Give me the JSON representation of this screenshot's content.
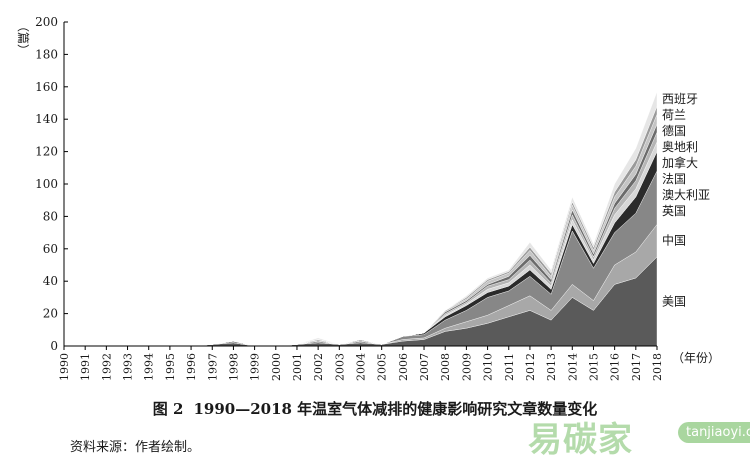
{
  "chart_data": {
    "type": "area",
    "stacked": true,
    "y_unit": "（篇）",
    "x_unit": "（年份）",
    "ylim": [
      0,
      200
    ],
    "yticks": [
      0,
      20,
      40,
      60,
      80,
      100,
      120,
      140,
      160,
      180,
      200
    ],
    "grid": false,
    "x": [
      "1990",
      "1991",
      "1992",
      "1993",
      "1994",
      "1995",
      "1996",
      "1997",
      "1998",
      "1999",
      "2000",
      "2001",
      "2002",
      "2003",
      "2004",
      "2005",
      "2006",
      "2007",
      "2008",
      "2009",
      "2010",
      "2011",
      "2012",
      "2013",
      "2014",
      "2015",
      "2016",
      "2017",
      "2018"
    ],
    "series": [
      {
        "name": "美国",
        "color": "#5a5a5a",
        "values": [
          0,
          0,
          0,
          0,
          0,
          0,
          0,
          1,
          2,
          0,
          0,
          1,
          2,
          1,
          2,
          1,
          3,
          4,
          9,
          11,
          14,
          18,
          22,
          16,
          30,
          22,
          38,
          42,
          55
        ]
      },
      {
        "name": "中国",
        "color": "#a8a8a8",
        "values": [
          0,
          0,
          0,
          0,
          0,
          0,
          0,
          0,
          0,
          0,
          0,
          0,
          0,
          0,
          0,
          0,
          1,
          1,
          2,
          4,
          5,
          7,
          9,
          6,
          8,
          6,
          12,
          16,
          20
        ]
      },
      {
        "name": "英国",
        "color": "#878787",
        "values": [
          0,
          0,
          0,
          0,
          0,
          0,
          0,
          0,
          1,
          0,
          0,
          0,
          1,
          0,
          1,
          0,
          2,
          2,
          5,
          7,
          11,
          9,
          12,
          10,
          33,
          20,
          20,
          24,
          33
        ]
      },
      {
        "name": "澳大利亚",
        "color": "#2b2b2b",
        "values": [
          0,
          0,
          0,
          0,
          0,
          0,
          0,
          0,
          0,
          0,
          0,
          0,
          0,
          0,
          0,
          0,
          0,
          1,
          2,
          3,
          3,
          3,
          4,
          3,
          4,
          3,
          6,
          10,
          12
        ]
      },
      {
        "name": "法国",
        "color": "#d7d7d7",
        "values": [
          0,
          0,
          0,
          0,
          0,
          0,
          0,
          0,
          0,
          0,
          0,
          0,
          0,
          0,
          0,
          0,
          0,
          0,
          1,
          1,
          2,
          2,
          3,
          2,
          3,
          2,
          5,
          5,
          6
        ]
      },
      {
        "name": "加拿大",
        "color": "#b5b5b5",
        "values": [
          0,
          0,
          0,
          0,
          0,
          0,
          0,
          0,
          0,
          0,
          0,
          0,
          1,
          0,
          1,
          0,
          0,
          0,
          1,
          1,
          2,
          2,
          3,
          2,
          3,
          2,
          4,
          5,
          6
        ]
      },
      {
        "name": "奥地利",
        "color": "#6b6b6b",
        "values": [
          0,
          0,
          0,
          0,
          0,
          0,
          0,
          0,
          0,
          0,
          0,
          0,
          0,
          0,
          0,
          0,
          0,
          0,
          1,
          1,
          1,
          2,
          3,
          2,
          3,
          2,
          3,
          4,
          5
        ]
      },
      {
        "name": "德国",
        "color": "#c4c4c4",
        "values": [
          0,
          0,
          0,
          0,
          0,
          0,
          0,
          0,
          0,
          0,
          0,
          0,
          0,
          0,
          0,
          0,
          0,
          0,
          1,
          1,
          2,
          2,
          3,
          2,
          3,
          2,
          4,
          5,
          6
        ]
      },
      {
        "name": "荷兰",
        "color": "#9a9a9a",
        "values": [
          0,
          0,
          0,
          0,
          0,
          0,
          0,
          0,
          0,
          0,
          0,
          0,
          0,
          0,
          0,
          0,
          0,
          0,
          0,
          1,
          1,
          1,
          2,
          2,
          2,
          2,
          3,
          4,
          5
        ]
      },
      {
        "name": "西班牙",
        "color": "#e6e6e6",
        "values": [
          0,
          0,
          0,
          0,
          0,
          0,
          0,
          0,
          0,
          0,
          0,
          0,
          1,
          0,
          0,
          0,
          0,
          0,
          0,
          1,
          1,
          1,
          3,
          2,
          3,
          2,
          5,
          7,
          9
        ]
      }
    ],
    "caption_number": "图 2",
    "caption_text": "1990—2018 年温室气体减排的健康影响研究文章数量变化"
  },
  "source": "资料来源：作者绘制。",
  "watermark": {
    "cn": "易碳家",
    "url": "tanjiaoyi.com"
  }
}
